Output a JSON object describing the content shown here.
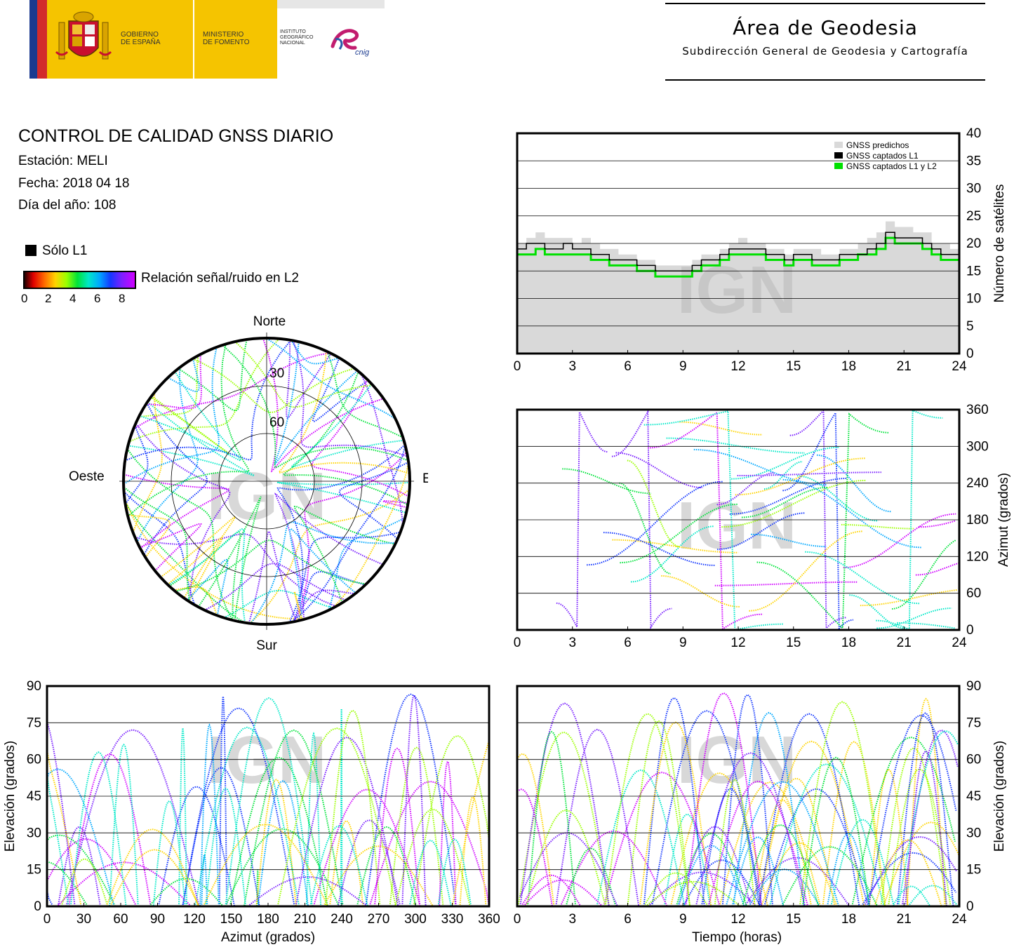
{
  "header": {
    "gobierno_line1": "GOBIERNO",
    "gobierno_line2": "DE ESPAÑA",
    "ministerio_line1": "MINISTERIO",
    "ministerio_line2": "DE FOMENTO",
    "ign_line1": "INSTITUTO",
    "ign_line2": "GEOGRÁFICO",
    "ign_line3": "NACIONAL",
    "cnig_logo": "cnig",
    "area_title": "Área de Geodesia",
    "area_subtitle": "Subdirección General de Geodesia y Cartografía"
  },
  "info": {
    "title": "CONTROL DE CALIDAD GNSS DIARIO",
    "station": "Estación: MELI",
    "date": "Fecha: 2018 04 18",
    "doy": "Día del año: 108",
    "legend_l1": "Sólo L1",
    "legend_snr": "Relación señal/ruido en L2",
    "snr_ticks": [
      "0",
      "2",
      "4",
      "6",
      "8"
    ]
  },
  "watermark": "IGN",
  "colors": {
    "predicted": "#d9d9d9",
    "l1": "#000000",
    "l1l2": "#00e000",
    "snr_scale": [
      "#200000",
      "#e00000",
      "#ff6a00",
      "#ffd400",
      "#9cff00",
      "#00e33a",
      "#00e8c8",
      "#00a8ff",
      "#1438ff",
      "#7a20ff",
      "#d000ff"
    ]
  },
  "chart_data": [
    {
      "id": "skyplot",
      "type": "scatter",
      "title": "",
      "compass": {
        "north": "Norte",
        "south": "Sur",
        "east": "Este",
        "west": "Oeste"
      },
      "elevation_rings": [
        "30",
        "60"
      ]
    },
    {
      "id": "satcount",
      "type": "area",
      "xlabel": "",
      "ylabel": "Número de satélites",
      "xlim": [
        0,
        24
      ],
      "ylim": [
        0,
        40
      ],
      "xticks": [
        "0",
        "3",
        "6",
        "9",
        "12",
        "15",
        "18",
        "21",
        "24"
      ],
      "yticks": [
        "0",
        "5",
        "10",
        "15",
        "20",
        "25",
        "30",
        "35",
        "40"
      ],
      "legend": [
        "GNSS predichos",
        "GNSS captados L1",
        "GNSS captados L1 y L2"
      ],
      "legend_position": "top-right",
      "series": [
        {
          "name": "GNSS predichos",
          "x": [
            0,
            0.5,
            1,
            1.5,
            2,
            2.5,
            3,
            3.5,
            4,
            4.5,
            5,
            5.5,
            6,
            6.5,
            7,
            7.5,
            8,
            8.5,
            9,
            9.5,
            10,
            10.5,
            11,
            11.5,
            12,
            12.5,
            13,
            13.5,
            14,
            14.5,
            15,
            15.5,
            16,
            16.5,
            17,
            17.5,
            18,
            18.5,
            19,
            19.5,
            20,
            20.5,
            21,
            21.5,
            22,
            22.5,
            23,
            23.5,
            24
          ],
          "values": [
            20,
            21,
            22,
            21,
            21,
            21,
            20,
            21,
            20,
            19,
            19,
            18,
            18,
            17,
            17,
            16,
            16,
            16,
            16,
            17,
            18,
            18,
            19,
            20,
            21,
            20,
            20,
            19,
            19,
            18,
            19,
            19,
            19,
            18,
            18,
            19,
            19,
            20,
            21,
            22,
            24,
            23,
            23,
            22,
            22,
            20,
            20,
            19,
            20
          ]
        },
        {
          "name": "GNSS captados L1",
          "x": [
            0,
            0.5,
            1,
            1.5,
            2,
            2.5,
            3,
            3.5,
            4,
            4.5,
            5,
            5.5,
            6,
            6.5,
            7,
            7.5,
            8,
            8.5,
            9,
            9.5,
            10,
            10.5,
            11,
            11.5,
            12,
            12.5,
            13,
            13.5,
            14,
            14.5,
            15,
            15.5,
            16,
            16.5,
            17,
            17.5,
            18,
            18.5,
            19,
            19.5,
            20,
            20.5,
            21,
            21.5,
            22,
            22.5,
            23,
            23.5,
            24
          ],
          "values": [
            19,
            20,
            20,
            19,
            19,
            20,
            19,
            19,
            18,
            18,
            17,
            17,
            17,
            16,
            16,
            15,
            15,
            15,
            15,
            16,
            17,
            17,
            18,
            19,
            19,
            19,
            19,
            18,
            18,
            17,
            18,
            18,
            17,
            17,
            17,
            18,
            18,
            18,
            19,
            20,
            22,
            21,
            21,
            21,
            20,
            19,
            18,
            18,
            18
          ]
        },
        {
          "name": "GNSS captados L1 y L2",
          "x": [
            0,
            0.5,
            1,
            1.5,
            2,
            2.5,
            3,
            3.5,
            4,
            4.5,
            5,
            5.5,
            6,
            6.5,
            7,
            7.5,
            8,
            8.5,
            9,
            9.5,
            10,
            10.5,
            11,
            11.5,
            12,
            12.5,
            13,
            13.5,
            14,
            14.5,
            15,
            15.5,
            16,
            16.5,
            17,
            17.5,
            18,
            18.5,
            19,
            19.5,
            20,
            20.5,
            21,
            21.5,
            22,
            22.5,
            23,
            23.5,
            24
          ],
          "values": [
            18,
            18,
            19,
            18,
            18,
            18,
            18,
            18,
            17,
            17,
            16,
            16,
            16,
            15,
            15,
            14,
            14,
            14,
            14,
            15,
            16,
            16,
            17,
            18,
            18,
            18,
            18,
            17,
            17,
            16,
            17,
            17,
            16,
            16,
            16,
            17,
            17,
            18,
            18,
            19,
            21,
            20,
            20,
            20,
            19,
            18,
            17,
            17,
            17
          ]
        }
      ]
    },
    {
      "id": "azimuth_time",
      "type": "scatter",
      "xlabel": "",
      "ylabel": "Azimut (grados)",
      "xlim": [
        0,
        24
      ],
      "ylim": [
        0,
        360
      ],
      "xticks": [
        "0",
        "3",
        "6",
        "9",
        "12",
        "15",
        "18",
        "21",
        "24"
      ],
      "yticks": [
        "0",
        "60",
        "120",
        "180",
        "240",
        "300",
        "360"
      ]
    },
    {
      "id": "elev_az",
      "type": "scatter",
      "xlabel": "Azimut (grados)",
      "ylabel": "Elevación (grados)",
      "xlim": [
        0,
        360
      ],
      "ylim": [
        0,
        90
      ],
      "xticks": [
        "0",
        "30",
        "60",
        "90",
        "120",
        "150",
        "180",
        "210",
        "240",
        "270",
        "300",
        "330",
        "360"
      ],
      "yticks": [
        "0",
        "15",
        "30",
        "45",
        "60",
        "75",
        "90"
      ]
    },
    {
      "id": "elev_time",
      "type": "scatter",
      "xlabel": "Tiempo (horas)",
      "ylabel": "Elevación (grados)",
      "xlim": [
        0,
        24
      ],
      "ylim": [
        0,
        90
      ],
      "xticks": [
        "0",
        "3",
        "6",
        "9",
        "12",
        "15",
        "18",
        "21",
        "24"
      ],
      "yticks": [
        "0",
        "15",
        "30",
        "45",
        "60",
        "75",
        "90"
      ]
    }
  ]
}
